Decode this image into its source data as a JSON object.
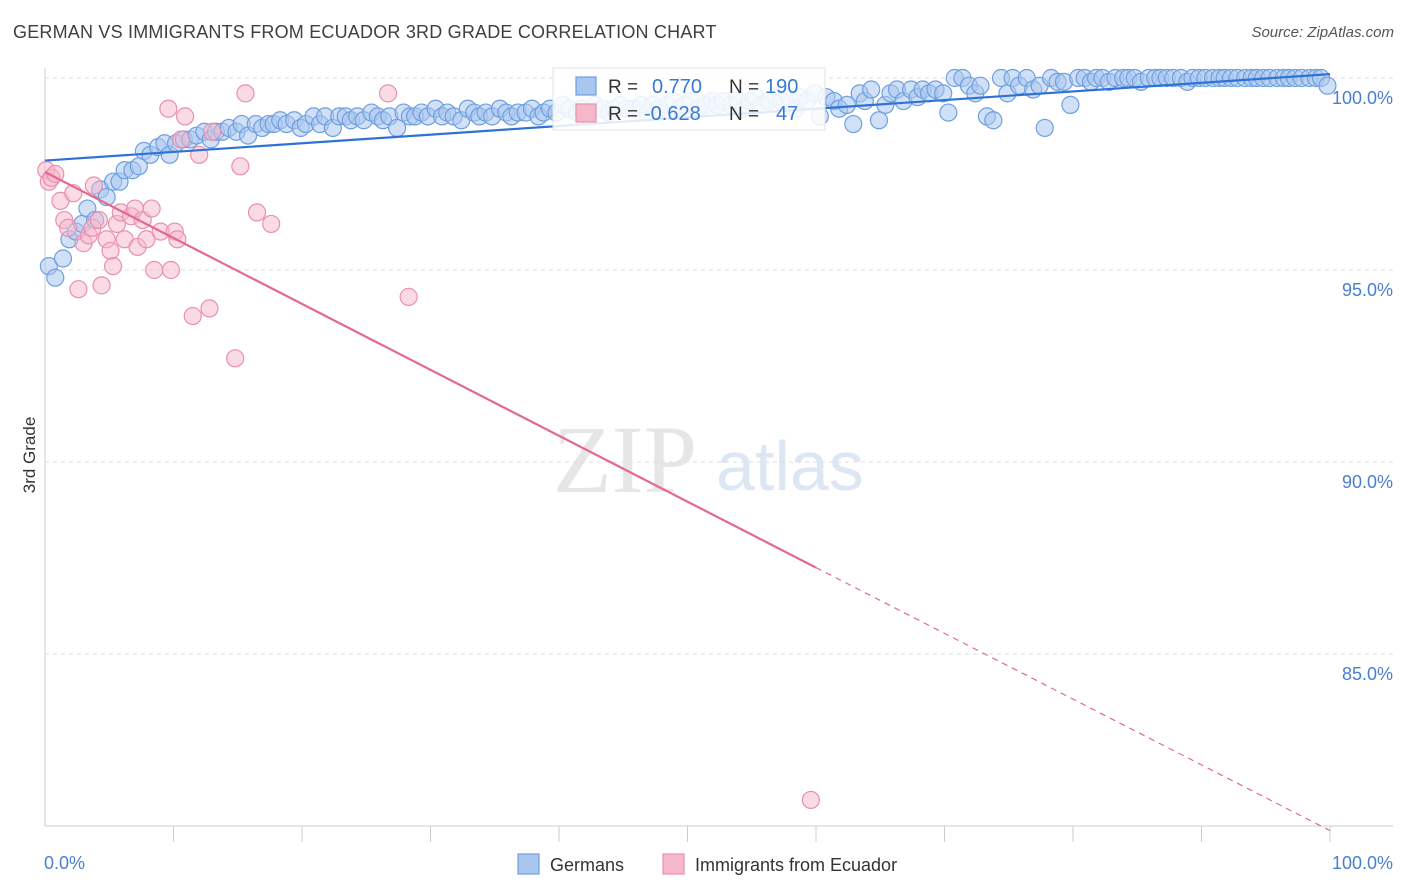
{
  "title": "GERMAN VS IMMIGRANTS FROM ECUADOR 3RD GRADE CORRELATION CHART",
  "source": "Source: ZipAtlas.com",
  "watermark": {
    "zip": "ZIP",
    "atlas": "atlas"
  },
  "colors": {
    "germans_fill": "#a9c6ee",
    "germans_stroke": "#6f9fe0",
    "germans_line": "#2f72d6",
    "ecuador_fill": "#f5b8cb",
    "ecuador_stroke": "#ea8fae",
    "ecuador_line": "#e2698f",
    "axis_text": "#4a7fcf",
    "grid": "#d9dde3"
  },
  "stats": {
    "r_label": "R =",
    "n_label": "N =",
    "germans": {
      "r": "0.770",
      "n": "190"
    },
    "ecuador": {
      "r": "-0.628",
      "n": "47"
    }
  },
  "chart_data": {
    "type": "scatter",
    "title": "GERMAN VS IMMIGRANTS FROM ECUADOR 3RD GRADE CORRELATION CHART",
    "xlabel": "",
    "ylabel": "3rd Grade",
    "xlim": [
      0,
      100
    ],
    "ylim": [
      80.0,
      100.7
    ],
    "x_tick_labels": [
      "0.0%",
      "100.0%"
    ],
    "y_ticks": [
      100.0,
      95.0,
      90.0,
      85.0
    ],
    "y_tick_labels": [
      "100.0%",
      "95.0%",
      "90.0%",
      "85.0%"
    ],
    "grid": "horizontal dashed",
    "legend_placement": "bottom-center",
    "series": [
      {
        "name": "Germans",
        "r": 0.77,
        "n": 190,
        "trend": {
          "x": [
            0,
            100
          ],
          "y": [
            97.85,
            100.1
          ]
        },
        "points": [
          [
            0.3,
            95.1
          ],
          [
            0.8,
            94.8
          ],
          [
            1.4,
            95.3
          ],
          [
            1.9,
            95.8
          ],
          [
            2.4,
            96.0
          ],
          [
            2.9,
            96.2
          ],
          [
            3.3,
            96.6
          ],
          [
            3.9,
            96.3
          ],
          [
            4.3,
            97.1
          ],
          [
            4.8,
            96.9
          ],
          [
            5.3,
            97.3
          ],
          [
            5.8,
            97.3
          ],
          [
            6.2,
            97.6
          ],
          [
            6.8,
            97.6
          ],
          [
            7.3,
            97.7
          ],
          [
            7.7,
            98.1
          ],
          [
            8.2,
            98.0
          ],
          [
            8.8,
            98.2
          ],
          [
            9.3,
            98.3
          ],
          [
            9.7,
            98.0
          ],
          [
            10.2,
            98.3
          ],
          [
            10.8,
            98.4
          ],
          [
            11.3,
            98.4
          ],
          [
            11.8,
            98.5
          ],
          [
            12.4,
            98.6
          ],
          [
            12.9,
            98.4
          ],
          [
            13.3,
            98.6
          ],
          [
            13.8,
            98.6
          ],
          [
            14.3,
            98.7
          ],
          [
            14.9,
            98.6
          ],
          [
            15.3,
            98.8
          ],
          [
            15.8,
            98.5
          ],
          [
            16.4,
            98.8
          ],
          [
            16.9,
            98.7
          ],
          [
            17.4,
            98.8
          ],
          [
            17.8,
            98.8
          ],
          [
            18.3,
            98.9
          ],
          [
            18.8,
            98.8
          ],
          [
            19.4,
            98.9
          ],
          [
            19.9,
            98.7
          ],
          [
            20.3,
            98.8
          ],
          [
            20.9,
            99.0
          ],
          [
            21.4,
            98.8
          ],
          [
            21.8,
            99.0
          ],
          [
            22.4,
            98.7
          ],
          [
            22.9,
            99.0
          ],
          [
            23.4,
            99.0
          ],
          [
            23.8,
            98.9
          ],
          [
            24.3,
            99.0
          ],
          [
            24.8,
            98.9
          ],
          [
            25.4,
            99.1
          ],
          [
            25.9,
            99.0
          ],
          [
            26.3,
            98.9
          ],
          [
            26.8,
            99.0
          ],
          [
            27.4,
            98.7
          ],
          [
            27.9,
            99.1
          ],
          [
            28.4,
            99.0
          ],
          [
            28.8,
            99.0
          ],
          [
            29.3,
            99.1
          ],
          [
            29.8,
            99.0
          ],
          [
            30.4,
            99.2
          ],
          [
            30.9,
            99.0
          ],
          [
            31.3,
            99.1
          ],
          [
            31.8,
            99.0
          ],
          [
            32.4,
            98.9
          ],
          [
            32.9,
            99.2
          ],
          [
            33.4,
            99.1
          ],
          [
            33.8,
            99.0
          ],
          [
            34.3,
            99.1
          ],
          [
            34.8,
            99.0
          ],
          [
            35.4,
            99.2
          ],
          [
            35.9,
            99.1
          ],
          [
            36.3,
            99.0
          ],
          [
            36.8,
            99.1
          ],
          [
            37.4,
            99.1
          ],
          [
            37.9,
            99.2
          ],
          [
            38.4,
            99.0
          ],
          [
            38.8,
            99.1
          ],
          [
            39.3,
            99.2
          ],
          [
            39.8,
            99.1
          ],
          [
            40.3,
            99.3
          ],
          [
            40.8,
            99.2
          ],
          [
            41.4,
            99.1
          ],
          [
            41.8,
            99.2
          ],
          [
            42.3,
            99.1
          ],
          [
            42.8,
            99.3
          ],
          [
            43.4,
            99.2
          ],
          [
            43.9,
            99.1
          ],
          [
            44.3,
            99.2
          ],
          [
            44.8,
            99.3
          ],
          [
            45.3,
            99.2
          ],
          [
            45.8,
            99.2
          ],
          [
            46.4,
            99.3
          ],
          [
            46.9,
            99.1
          ],
          [
            47.3,
            99.3
          ],
          [
            47.8,
            99.2
          ],
          [
            48.4,
            99.3
          ],
          [
            48.9,
            99.4
          ],
          [
            49.4,
            99.2
          ],
          [
            49.8,
            99.3
          ],
          [
            50.3,
            99.4
          ],
          [
            50.8,
            99.2
          ],
          [
            51.4,
            99.3
          ],
          [
            51.9,
            99.4
          ],
          [
            52.3,
            99.3
          ],
          [
            52.8,
            99.4
          ],
          [
            53.4,
            99.3
          ],
          [
            53.9,
            99.4
          ],
          [
            54.4,
            99.2
          ],
          [
            54.8,
            99.4
          ],
          [
            55.3,
            99.5
          ],
          [
            55.8,
            99.3
          ],
          [
            56.3,
            99.4
          ],
          [
            56.9,
            99.5
          ],
          [
            57.3,
            99.4
          ],
          [
            57.9,
            99.5
          ],
          [
            58.4,
            99.2
          ],
          [
            58.8,
            99.5
          ],
          [
            59.3,
            99.4
          ],
          [
            59.9,
            99.6
          ],
          [
            60.3,
            99.0
          ],
          [
            60.8,
            99.5
          ],
          [
            61.4,
            99.4
          ],
          [
            61.8,
            99.2
          ],
          [
            62.4,
            99.3
          ],
          [
            62.9,
            98.8
          ],
          [
            63.4,
            99.6
          ],
          [
            63.8,
            99.4
          ],
          [
            64.3,
            99.7
          ],
          [
            64.9,
            98.9
          ],
          [
            65.4,
            99.3
          ],
          [
            65.8,
            99.6
          ],
          [
            66.3,
            99.7
          ],
          [
            66.8,
            99.4
          ],
          [
            67.4,
            99.7
          ],
          [
            67.9,
            99.5
          ],
          [
            68.3,
            99.7
          ],
          [
            68.8,
            99.6
          ],
          [
            69.3,
            99.7
          ],
          [
            69.9,
            99.6
          ],
          [
            70.3,
            99.1
          ],
          [
            70.8,
            100.0
          ],
          [
            71.4,
            100.0
          ],
          [
            71.9,
            99.8
          ],
          [
            72.4,
            99.6
          ],
          [
            72.8,
            99.8
          ],
          [
            73.3,
            99.0
          ],
          [
            73.8,
            98.9
          ],
          [
            74.4,
            100.0
          ],
          [
            74.9,
            99.6
          ],
          [
            75.3,
            100.0
          ],
          [
            75.8,
            99.8
          ],
          [
            76.4,
            100.0
          ],
          [
            76.9,
            99.7
          ],
          [
            77.4,
            99.8
          ],
          [
            77.8,
            98.7
          ],
          [
            78.3,
            100.0
          ],
          [
            78.8,
            99.9
          ],
          [
            79.3,
            99.9
          ],
          [
            79.8,
            99.3
          ],
          [
            80.4,
            100.0
          ],
          [
            80.9,
            100.0
          ],
          [
            81.4,
            99.9
          ],
          [
            81.8,
            100.0
          ],
          [
            82.3,
            100.0
          ],
          [
            82.8,
            99.9
          ],
          [
            83.3,
            100.0
          ],
          [
            83.9,
            100.0
          ],
          [
            84.3,
            100.0
          ],
          [
            84.8,
            100.0
          ],
          [
            85.3,
            99.9
          ],
          [
            85.9,
            100.0
          ],
          [
            86.4,
            100.0
          ],
          [
            86.8,
            100.0
          ],
          [
            87.3,
            100.0
          ],
          [
            87.8,
            100.0
          ],
          [
            88.4,
            100.0
          ],
          [
            88.9,
            99.9
          ],
          [
            89.3,
            100.0
          ],
          [
            89.8,
            100.0
          ],
          [
            90.3,
            100.0
          ],
          [
            90.9,
            100.0
          ],
          [
            91.4,
            100.0
          ],
          [
            91.8,
            100.0
          ],
          [
            92.3,
            100.0
          ],
          [
            92.8,
            100.0
          ],
          [
            93.4,
            100.0
          ],
          [
            93.9,
            100.0
          ],
          [
            94.3,
            100.0
          ],
          [
            94.8,
            100.0
          ],
          [
            95.3,
            100.0
          ],
          [
            95.9,
            100.0
          ],
          [
            96.4,
            100.0
          ],
          [
            96.8,
            100.0
          ],
          [
            97.3,
            100.0
          ],
          [
            97.8,
            100.0
          ],
          [
            98.4,
            100.0
          ],
          [
            98.9,
            100.0
          ],
          [
            99.3,
            100.0
          ],
          [
            99.8,
            99.8
          ]
        ]
      },
      {
        "name": "Immigrants from Ecuador",
        "r": -0.628,
        "n": 47,
        "trend": {
          "x": [
            0,
            60
          ],
          "y": [
            97.55,
            87.25
          ]
        },
        "trend_dashed": {
          "x": [
            60,
            100
          ],
          "y": [
            87.25,
            80.4
          ]
        },
        "points": [
          [
            0.1,
            97.6
          ],
          [
            0.3,
            97.3
          ],
          [
            0.5,
            97.4
          ],
          [
            0.8,
            97.5
          ],
          [
            1.2,
            96.8
          ],
          [
            1.5,
            96.3
          ],
          [
            1.8,
            96.1
          ],
          [
            2.2,
            97.0
          ],
          [
            2.6,
            94.5
          ],
          [
            3.0,
            95.7
          ],
          [
            3.4,
            95.9
          ],
          [
            3.7,
            96.1
          ],
          [
            3.8,
            97.2
          ],
          [
            4.2,
            96.3
          ],
          [
            4.4,
            94.6
          ],
          [
            4.8,
            95.8
          ],
          [
            5.1,
            95.5
          ],
          [
            5.3,
            95.1
          ],
          [
            5.6,
            96.2
          ],
          [
            5.9,
            96.5
          ],
          [
            6.2,
            95.8
          ],
          [
            6.7,
            96.4
          ],
          [
            7.0,
            96.6
          ],
          [
            7.2,
            95.6
          ],
          [
            7.6,
            96.3
          ],
          [
            7.9,
            95.8
          ],
          [
            8.3,
            96.6
          ],
          [
            8.5,
            95.0
          ],
          [
            9.0,
            96.0
          ],
          [
            9.6,
            99.2
          ],
          [
            9.8,
            95.0
          ],
          [
            10.1,
            96.0
          ],
          [
            10.3,
            95.8
          ],
          [
            10.6,
            98.4
          ],
          [
            10.9,
            99.0
          ],
          [
            11.5,
            93.8
          ],
          [
            12.0,
            98.0
          ],
          [
            12.8,
            94.0
          ],
          [
            13.0,
            98.6
          ],
          [
            14.8,
            92.7
          ],
          [
            15.2,
            97.7
          ],
          [
            15.6,
            99.6
          ],
          [
            16.5,
            96.5
          ],
          [
            17.6,
            96.2
          ],
          [
            26.7,
            99.6
          ],
          [
            28.3,
            94.3
          ],
          [
            59.6,
            81.2
          ]
        ]
      }
    ]
  },
  "legend": {
    "germans": "Germans",
    "ecuador": "Immigrants from Ecuador"
  }
}
